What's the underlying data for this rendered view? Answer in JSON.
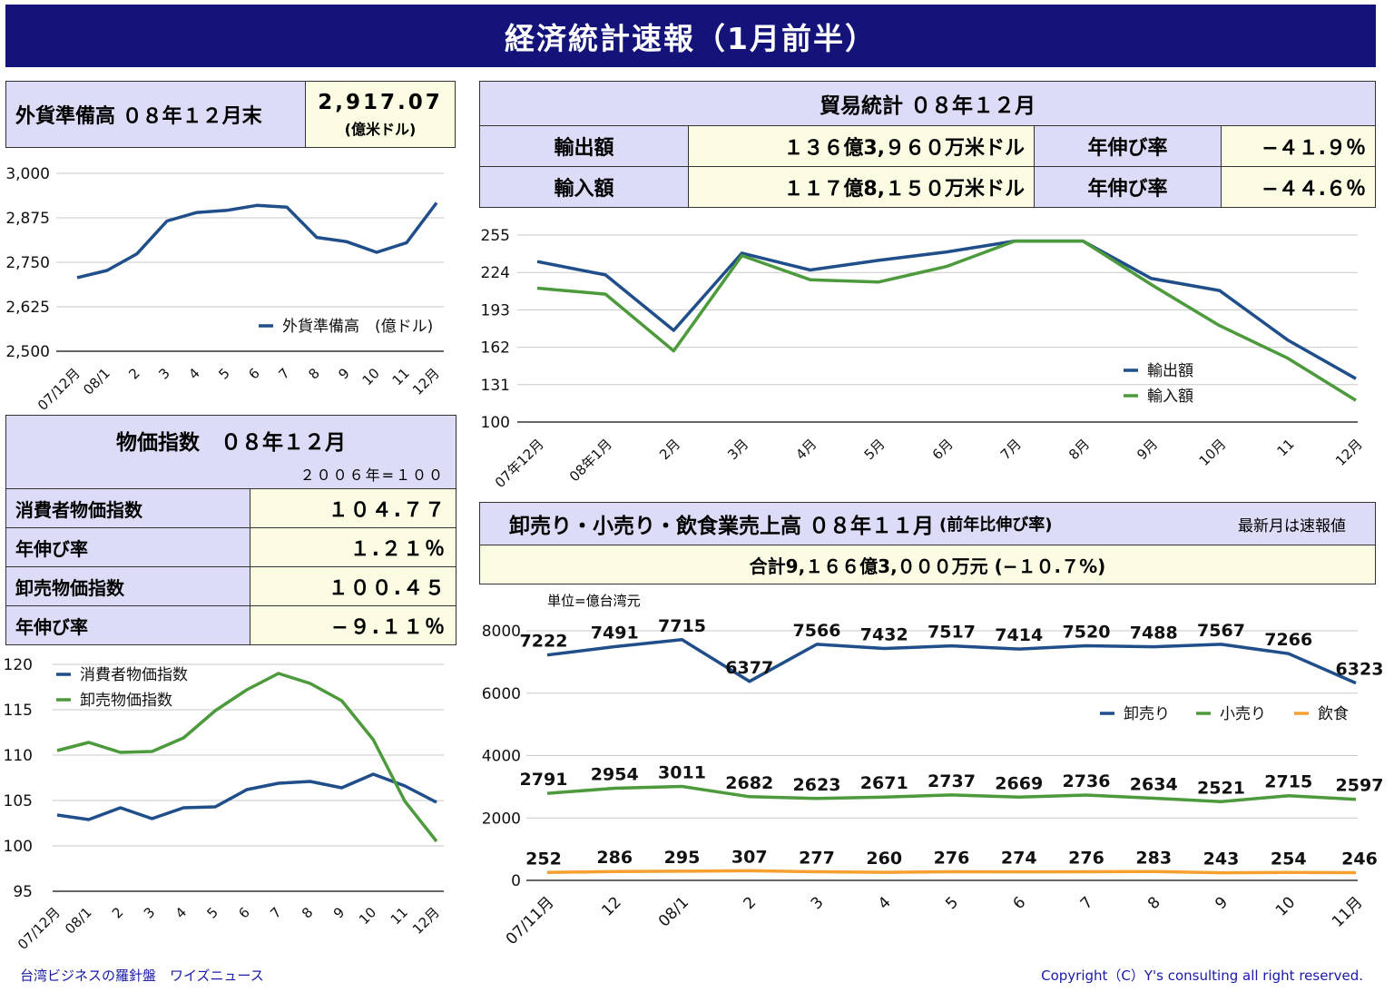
{
  "header": {
    "title": "経済統計速報（1月前半）"
  },
  "forex": {
    "label": "外貨準備高 ０８年１２月末",
    "value": "2,917.07",
    "unit": "(億米ドル)",
    "chart_data": {
      "type": "line",
      "categories": [
        "07/12月",
        "08/1",
        "2",
        "3",
        "4",
        "5",
        "6",
        "7",
        "8",
        "9",
        "10",
        "11",
        "12月"
      ],
      "series": [
        {
          "name": "外貨準備高　(億ドル)",
          "values": [
            2707,
            2727,
            2774,
            2866,
            2890,
            2896,
            2910,
            2905,
            2820,
            2808,
            2778,
            2805,
            2917
          ],
          "color": "#1f4e8a"
        }
      ],
      "ylim": [
        2500,
        3000
      ],
      "yticks": [
        "2,500",
        "2,625",
        "2,750",
        "2,875",
        "3,000"
      ],
      "legend": "lower-right"
    }
  },
  "trade": {
    "title": "貿易統計 ０８年１２月",
    "rows": [
      {
        "label": "輸出額",
        "value": "１３６億3,９６０万米ドル",
        "rate_label": "年伸び率",
        "rate": "−４１.９％"
      },
      {
        "label": "輸入額",
        "value": "１１７億8,１５０万米ドル",
        "rate_label": "年伸び率",
        "rate": "−４４.６％"
      }
    ],
    "chart_data": {
      "type": "line",
      "categories": [
        "07年12月",
        "08年1月",
        "2月",
        "3月",
        "4月",
        "5月",
        "6月",
        "7月",
        "8月",
        "9月",
        "10月",
        "11",
        "12月"
      ],
      "series": [
        {
          "name": "輸出額",
          "values": [
            233,
            222,
            176,
            240,
            226,
            234,
            241,
            250,
            250,
            219,
            209,
            168,
            136
          ],
          "color": "#1f4e8a"
        },
        {
          "name": "輸入額",
          "values": [
            211,
            206,
            159,
            238,
            218,
            216,
            229,
            250,
            250,
            214,
            180,
            153,
            118
          ],
          "color": "#4c9a3c"
        }
      ],
      "ylim": [
        100,
        255
      ],
      "yticks": [
        "100",
        "131",
        "162",
        "193",
        "224",
        "255"
      ],
      "legend": "lower-right"
    }
  },
  "price": {
    "title": "物価指数　０８年１２月",
    "base": "２００６年=１００",
    "rows": [
      {
        "label": "消費者物価指数",
        "value": "１０４.７７"
      },
      {
        "label": "年伸び率",
        "value": "１.２１％"
      },
      {
        "label": "卸売物価指数",
        "value": "１００.４５"
      },
      {
        "label": "年伸び率",
        "value": "−９.１１％"
      }
    ],
    "chart_data": {
      "type": "line",
      "categories": [
        "07/12月",
        "08/1",
        "2",
        "3",
        "4",
        "5",
        "6",
        "7",
        "8",
        "9",
        "10",
        "11",
        "12月"
      ],
      "series": [
        {
          "name": "消費者物価指数",
          "values": [
            103.4,
            102.9,
            104.2,
            103.0,
            104.2,
            104.3,
            106.2,
            106.9,
            107.1,
            106.4,
            107.9,
            106.6,
            104.8
          ],
          "color": "#1f4e8a"
        },
        {
          "name": "卸売物価指数",
          "values": [
            110.5,
            111.4,
            110.3,
            110.4,
            111.9,
            114.9,
            117.2,
            119.0,
            117.9,
            116.0,
            111.7,
            104.9,
            100.5
          ],
          "color": "#4c9a3c"
        }
      ],
      "ylim": [
        95,
        120
      ],
      "yticks": [
        "95",
        "100",
        "105",
        "110",
        "115",
        "120"
      ],
      "legend": "top-left"
    }
  },
  "sales": {
    "title": "卸売り・小売り・飲食業売上高 ０８年１１月",
    "title_sub": "(前年比伸び率)",
    "note": "最新月は速報値",
    "total": "合計9,１６６億3,０００万元 (−１０.７%)",
    "unit_label": "単位=億台湾元",
    "chart_data": {
      "type": "line",
      "categories": [
        "07/11月",
        "12",
        "08/1",
        "2",
        "3",
        "4",
        "5",
        "6",
        "7",
        "8",
        "9",
        "10",
        "11月"
      ],
      "series": [
        {
          "name": "卸売り",
          "values": [
            7222,
            7491,
            7715,
            6377,
            7566,
            7432,
            7517,
            7414,
            7520,
            7488,
            7567,
            7266,
            6323
          ],
          "color": "#1f4e8a"
        },
        {
          "name": "小売り",
          "values": [
            2791,
            2954,
            3011,
            2682,
            2623,
            2671,
            2737,
            2669,
            2736,
            2634,
            2521,
            2715,
            2597
          ],
          "color": "#4c9a3c"
        },
        {
          "name": "飲食",
          "values": [
            252,
            286,
            295,
            307,
            277,
            260,
            276,
            274,
            276,
            283,
            243,
            254,
            246
          ],
          "color": "#f5a030"
        }
      ],
      "ylim": [
        0,
        8000
      ],
      "yticks": [
        "0",
        "2000",
        "4000",
        "6000",
        "8000"
      ],
      "legend": "right"
    }
  },
  "footer": {
    "left": "台湾ビジネスの羅針盤　ワイズニュース",
    "right": "Copyright（C）Y's consulting all right reserved."
  }
}
